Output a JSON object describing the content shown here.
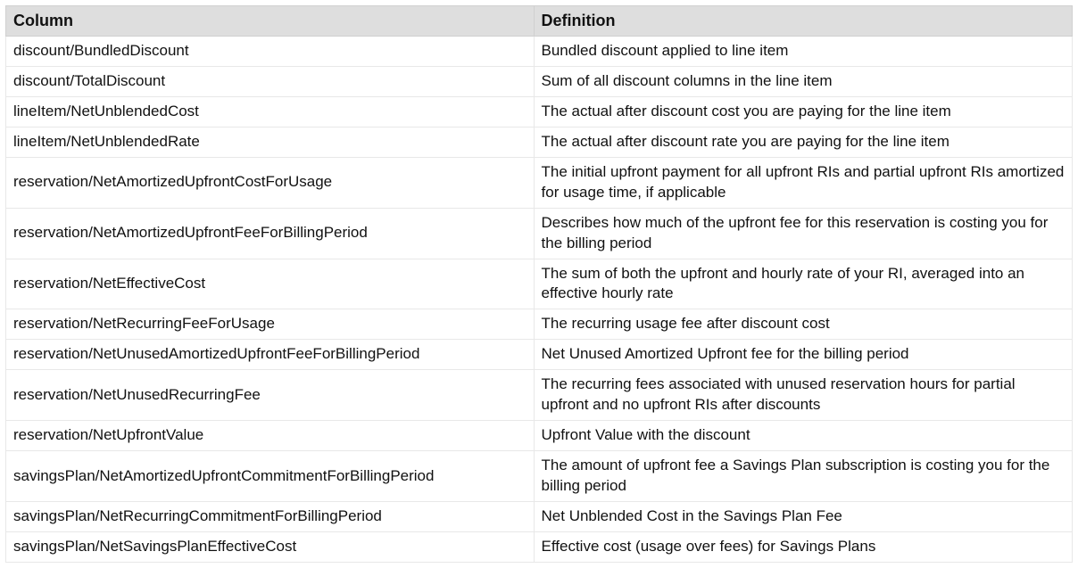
{
  "table": {
    "columns": [
      "Column",
      "Definition"
    ],
    "background_header": "#dedede",
    "header_fontsize": 18,
    "cell_fontsize": 17,
    "border_color": "#e8e8e8",
    "text_color": "#111111",
    "col_widths": [
      "49.5%",
      "50.5%"
    ],
    "rows": [
      [
        "discount/BundledDiscount",
        "Bundled discount applied to line item"
      ],
      [
        "discount/TotalDiscount",
        "Sum of all discount columns in the line item"
      ],
      [
        "lineItem/NetUnblendedCost",
        "The actual after discount cost you are paying for the line item"
      ],
      [
        "lineItem/NetUnblendedRate",
        "The actual after discount rate you are paying for the line item"
      ],
      [
        "reservation/NetAmortizedUpfrontCostForUsage",
        "The initial upfront payment for all upfront RIs and partial upfront RIs amortized for usage time, if applicable"
      ],
      [
        "reservation/NetAmortizedUpfrontFeeForBillingPeriod",
        "Describes how much of the upfront fee for this reservation is costing you for the billing period"
      ],
      [
        "reservation/NetEffectiveCost",
        "The sum of both the upfront and hourly rate of your RI, averaged into an effective hourly rate"
      ],
      [
        "reservation/NetRecurringFeeForUsage",
        "The recurring usage fee after discount cost"
      ],
      [
        "reservation/NetUnusedAmortizedUpfrontFeeForBillingPeriod",
        "Net Unused Amortized Upfront fee for the billing period"
      ],
      [
        "reservation/NetUnusedRecurringFee",
        "The recurring fees associated with unused reservation hours for partial upfront and no upfront RIs after discounts"
      ],
      [
        "reservation/NetUpfrontValue",
        "Upfront Value with the discount"
      ],
      [
        "savingsPlan/NetAmortizedUpfrontCommitmentForBillingPeriod",
        "The amount of upfront fee a Savings Plan subscription is costing you for the billing period"
      ],
      [
        "savingsPlan/NetRecurringCommitmentForBillingPeriod",
        "Net Unblended Cost in the Savings Plan Fee"
      ],
      [
        "savingsPlan/NetSavingsPlanEffectiveCost",
        "Effective cost (usage over fees) for Savings Plans"
      ]
    ]
  }
}
